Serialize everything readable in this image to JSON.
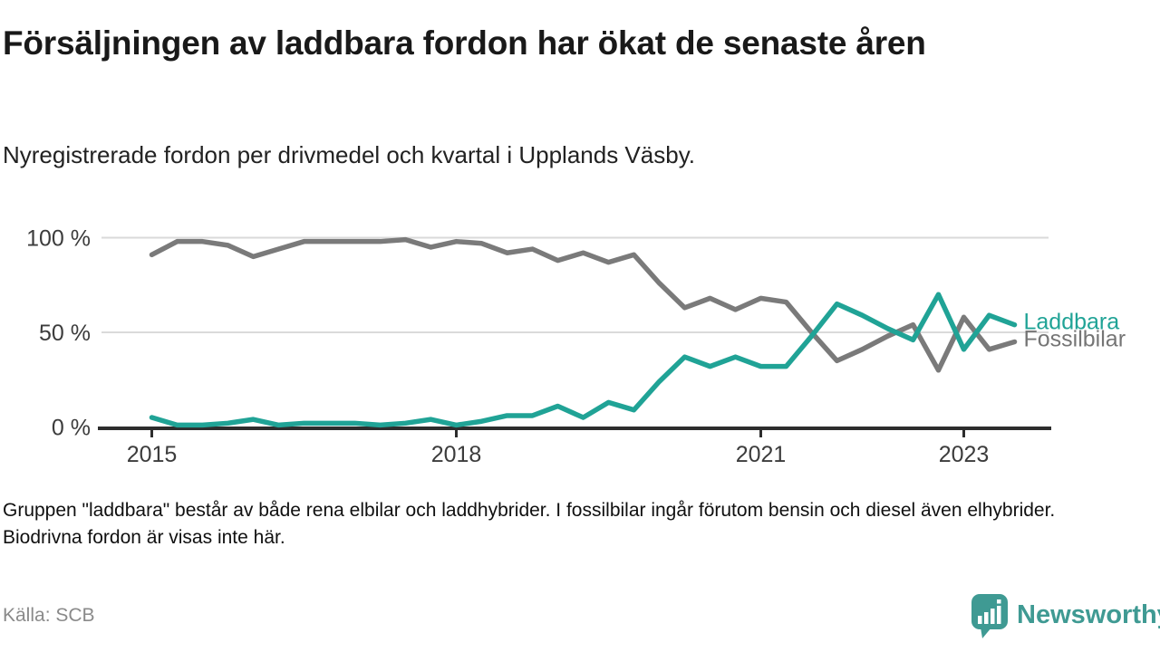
{
  "header": {
    "title": "Försäljningen av laddbara fordon har ökat de senaste åren",
    "subtitle": "Nyregistrerade fordon per drivmedel och kvartal i Upplands Väsby."
  },
  "footer": {
    "note": "Gruppen \"laddbara\" består av både rena elbilar och laddhybrider. I fossilbilar ingår förutom bensin och diesel även elhybrider. Biodrivna fordon är visas inte här.",
    "source": "Källa: SCB",
    "brand": "Newsworthy",
    "brand_color": "#3f9a93"
  },
  "chart_data": {
    "type": "line",
    "unit": "%",
    "grid": true,
    "legend_position": "right-end",
    "ylim": [
      0,
      100
    ],
    "categories": [
      "2015 Q1",
      "2015 Q2",
      "2015 Q3",
      "2015 Q4",
      "2016 Q1",
      "2016 Q2",
      "2016 Q3",
      "2016 Q4",
      "2017 Q1",
      "2017 Q2",
      "2017 Q3",
      "2017 Q4",
      "2018 Q1",
      "2018 Q2",
      "2018 Q3",
      "2018 Q4",
      "2019 Q1",
      "2019 Q2",
      "2019 Q3",
      "2019 Q4",
      "2020 Q1",
      "2020 Q2",
      "2020 Q3",
      "2020 Q4",
      "2021 Q1",
      "2021 Q2",
      "2021 Q3",
      "2021 Q4",
      "2022 Q1",
      "2022 Q2",
      "2022 Q3",
      "2022 Q4",
      "2023 Q1",
      "2023 Q2",
      "2023 Q3"
    ],
    "series": [
      {
        "name": "Fossilbilar",
        "color": "#7a7a7a",
        "label_color": "#757575",
        "values": [
          91,
          98,
          98,
          96,
          90,
          94,
          98,
          98,
          98,
          98,
          99,
          95,
          98,
          97,
          92,
          94,
          88,
          92,
          87,
          91,
          76,
          63,
          68,
          62,
          68,
          66,
          50,
          35,
          41,
          48,
          54,
          30,
          58,
          41,
          45
        ]
      },
      {
        "name": "Laddbara",
        "color": "#20a396",
        "label_color": "#20a396",
        "values": [
          5,
          1,
          1,
          2,
          4,
          1,
          2,
          2,
          2,
          1,
          2,
          4,
          1,
          3,
          6,
          6,
          11,
          5,
          13,
          9,
          24,
          37,
          32,
          37,
          32,
          32,
          48,
          65,
          59,
          52,
          46,
          70,
          41,
          59,
          54
        ]
      }
    ],
    "x_ticks": [
      {
        "label": "2015",
        "index": 0
      },
      {
        "label": "2018",
        "index": 12
      },
      {
        "label": "2021",
        "index": 24
      },
      {
        "label": "2023",
        "index": 32
      }
    ],
    "y_ticks": [
      {
        "label": "0 %",
        "value": 0
      },
      {
        "label": "50 %",
        "value": 50
      },
      {
        "label": "100 %",
        "value": 100
      }
    ]
  }
}
